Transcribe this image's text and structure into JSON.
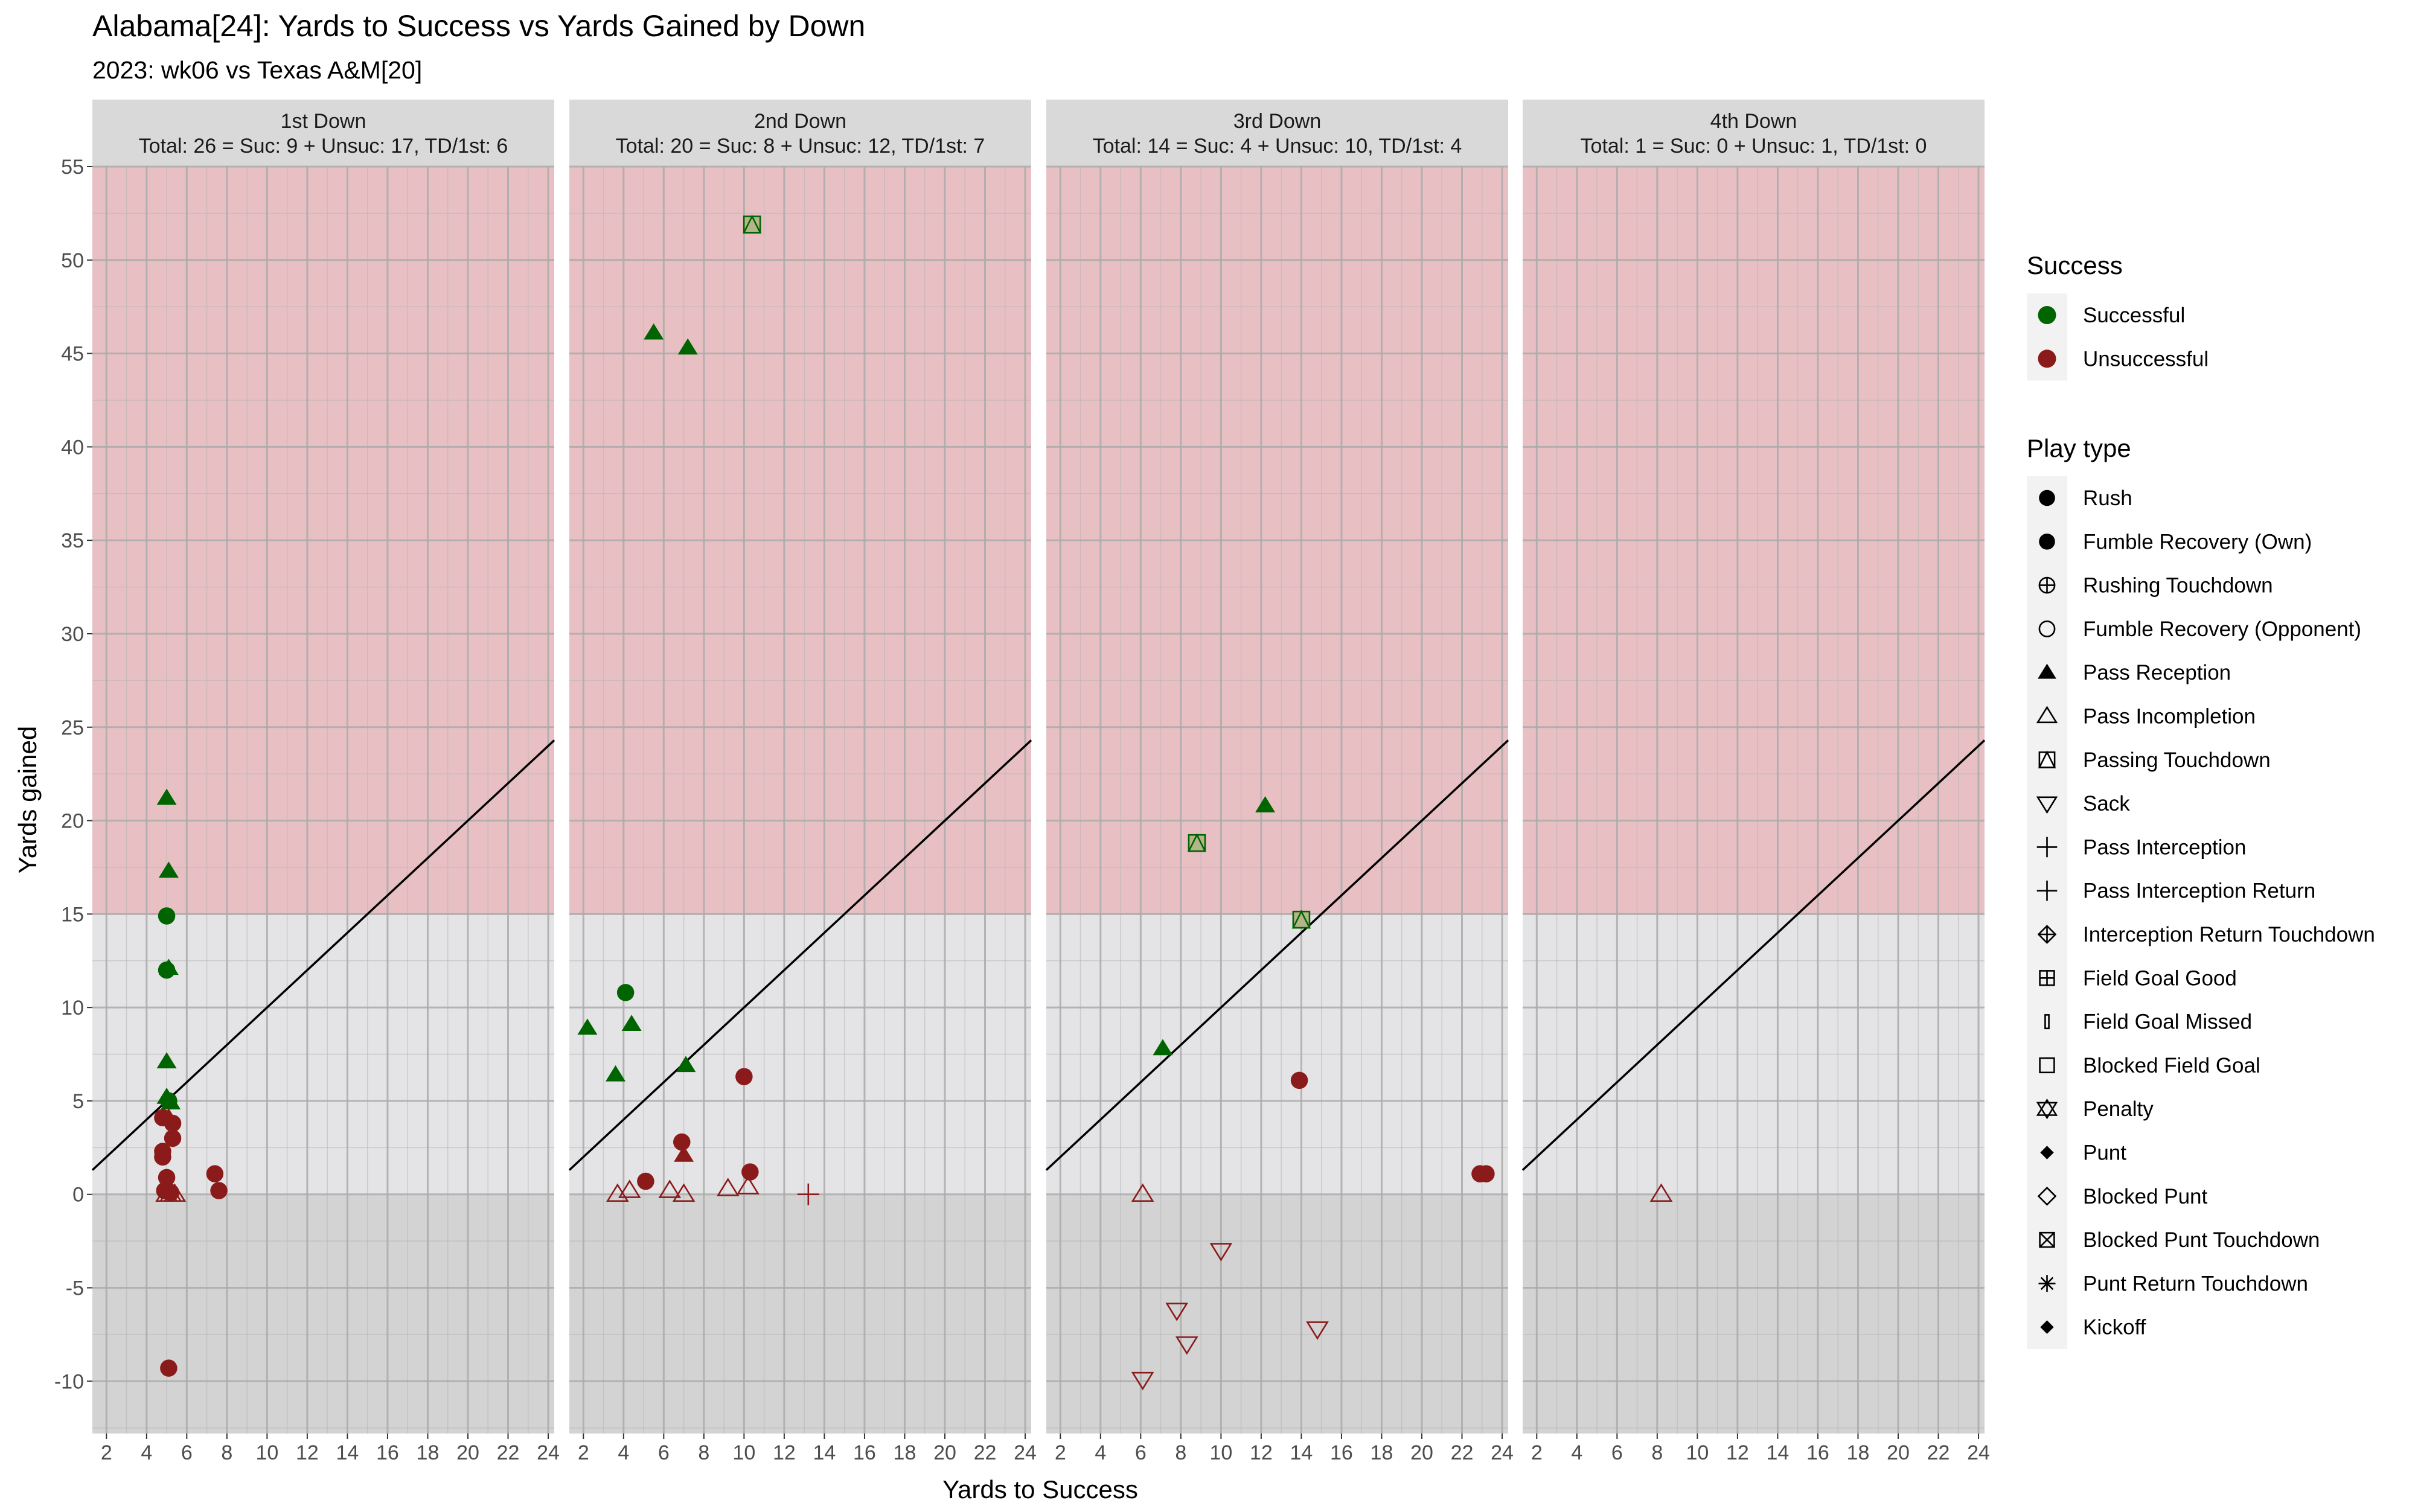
{
  "chart_data": {
    "type": "scatter",
    "title": "Alabama[24]: Yards to Success vs Yards Gained by Down",
    "subtitle": "2023: wk06 vs Texas A&M[20]",
    "xlabel": "Yards to Success",
    "ylabel": "Yards gained",
    "xlim": [
      1.3,
      24.3
    ],
    "ylim": [
      -12.8,
      55
    ],
    "x_ticks": [
      2,
      4,
      6,
      8,
      10,
      12,
      14,
      16,
      18,
      20,
      22,
      24
    ],
    "y_ticks": [
      -10,
      -5,
      0,
      5,
      10,
      15,
      20,
      25,
      30,
      35,
      40,
      45,
      50,
      55
    ],
    "grid": true,
    "bands": [
      {
        "from": -12.8,
        "to": 0,
        "color": "#d3d3d3"
      },
      {
        "from": 0,
        "to": 15,
        "color": "#e4e4e6"
      },
      {
        "from": 15,
        "to": 55,
        "color": "#e8c0c4"
      }
    ],
    "reference_line": {
      "slope": 1,
      "intercept": 0
    },
    "colors": {
      "Successful": "#006400",
      "Unsuccessful": "#8b1a1a",
      "passing_td_fill": "#b5b58a"
    },
    "legend_position": "right",
    "legend": {
      "success_title": "Success",
      "success_items": [
        {
          "label": "Successful",
          "color": "#006400"
        },
        {
          "label": "Unsuccessful",
          "color": "#8b1a1a"
        }
      ],
      "playtype_title": "Play type",
      "playtype_items": [
        {
          "label": "Rush",
          "shape": "circle-filled"
        },
        {
          "label": "Fumble Recovery (Own)",
          "shape": "circle-filled"
        },
        {
          "label": "Rushing Touchdown",
          "shape": "circle-plus"
        },
        {
          "label": "Fumble Recovery (Opponent)",
          "shape": "circle-open"
        },
        {
          "label": "Pass Reception",
          "shape": "triangle-filled"
        },
        {
          "label": "Pass Incompletion",
          "shape": "triangle-open"
        },
        {
          "label": "Passing Touchdown",
          "shape": "square-triangle"
        },
        {
          "label": "Sack",
          "shape": "triangle-down-open"
        },
        {
          "label": "Pass Interception",
          "shape": "plus"
        },
        {
          "label": "Pass Interception Return",
          "shape": "plus"
        },
        {
          "label": "Interception Return Touchdown",
          "shape": "diamond-plus"
        },
        {
          "label": "Field Goal Good",
          "shape": "square-plus"
        },
        {
          "label": "Field Goal Missed",
          "shape": "thin-rect"
        },
        {
          "label": "Blocked Field Goal",
          "shape": "square-open"
        },
        {
          "label": "Penalty",
          "shape": "star-of-david"
        },
        {
          "label": "Punt",
          "shape": "diamond-filled"
        },
        {
          "label": "Blocked Punt",
          "shape": "diamond-open"
        },
        {
          "label": "Blocked Punt Touchdown",
          "shape": "square-x"
        },
        {
          "label": "Punt Return Touchdown",
          "shape": "asterisk"
        },
        {
          "label": "Kickoff",
          "shape": "diamond-filled"
        }
      ]
    },
    "panels": [
      {
        "strip_line1": "1st Down",
        "strip_line2": "Total: 26 = Suc: 9 + Unsuc: 17, TD/1st: 6",
        "points": [
          {
            "x": 5.0,
            "y": 21.2,
            "type": "Pass Reception",
            "success": "Successful"
          },
          {
            "x": 5.1,
            "y": 17.3,
            "type": "Pass Reception",
            "success": "Successful"
          },
          {
            "x": 5.0,
            "y": 14.9,
            "type": "Rush",
            "success": "Successful"
          },
          {
            "x": 5.1,
            "y": 12.1,
            "type": "Pass Reception",
            "success": "Successful"
          },
          {
            "x": 5.0,
            "y": 12.0,
            "type": "Rush",
            "success": "Successful"
          },
          {
            "x": 5.0,
            "y": 7.1,
            "type": "Pass Reception",
            "success": "Successful"
          },
          {
            "x": 5.0,
            "y": 5.2,
            "type": "Pass Reception",
            "success": "Successful"
          },
          {
            "x": 5.1,
            "y": 5.0,
            "type": "Rush",
            "success": "Successful"
          },
          {
            "x": 5.2,
            "y": 4.9,
            "type": "Pass Reception",
            "success": "Successful"
          },
          {
            "x": 4.8,
            "y": 4.1,
            "type": "Rush",
            "success": "Unsuccessful"
          },
          {
            "x": 5.1,
            "y": 4.1,
            "type": "Pass Reception",
            "success": "Unsuccessful"
          },
          {
            "x": 5.3,
            "y": 3.8,
            "type": "Rush",
            "success": "Unsuccessful"
          },
          {
            "x": 5.3,
            "y": 3.0,
            "type": "Rush",
            "success": "Unsuccessful"
          },
          {
            "x": 4.8,
            "y": 2.3,
            "type": "Rush",
            "success": "Unsuccessful"
          },
          {
            "x": 4.8,
            "y": 2.0,
            "type": "Rush",
            "success": "Unsuccessful"
          },
          {
            "x": 5.0,
            "y": 0.9,
            "type": "Rush",
            "success": "Unsuccessful"
          },
          {
            "x": 4.9,
            "y": 0.2,
            "type": "Rush",
            "success": "Unsuccessful"
          },
          {
            "x": 5.2,
            "y": 0.1,
            "type": "Rush",
            "success": "Unsuccessful"
          },
          {
            "x": 5.0,
            "y": 0.0,
            "type": "Pass Incompletion",
            "success": "Unsuccessful"
          },
          {
            "x": 5.2,
            "y": 0.0,
            "type": "Pass Incompletion",
            "success": "Unsuccessful"
          },
          {
            "x": 5.4,
            "y": 0.0,
            "type": "Pass Incompletion",
            "success": "Unsuccessful"
          },
          {
            "x": 7.4,
            "y": 1.1,
            "type": "Rush",
            "success": "Unsuccessful"
          },
          {
            "x": 7.6,
            "y": 0.2,
            "type": "Rush",
            "success": "Unsuccessful"
          },
          {
            "x": 5.1,
            "y": -9.3,
            "type": "Rush",
            "success": "Unsuccessful"
          }
        ]
      },
      {
        "strip_line1": "2nd Down",
        "strip_line2": "Total: 20 = Suc: 8 + Unsuc: 12, TD/1st: 7",
        "points": [
          {
            "x": 10.4,
            "y": 51.9,
            "type": "Passing Touchdown",
            "success": "Successful"
          },
          {
            "x": 5.5,
            "y": 46.1,
            "type": "Pass Reception",
            "success": "Successful"
          },
          {
            "x": 7.2,
            "y": 45.3,
            "type": "Pass Reception",
            "success": "Successful"
          },
          {
            "x": 4.1,
            "y": 10.8,
            "type": "Rush",
            "success": "Successful"
          },
          {
            "x": 2.2,
            "y": 8.9,
            "type": "Pass Reception",
            "success": "Successful"
          },
          {
            "x": 4.4,
            "y": 9.1,
            "type": "Pass Reception",
            "success": "Successful"
          },
          {
            "x": 3.6,
            "y": 6.4,
            "type": "Pass Reception",
            "success": "Successful"
          },
          {
            "x": 7.1,
            "y": 6.9,
            "type": "Pass Reception",
            "success": "Successful"
          },
          {
            "x": 10.0,
            "y": 6.3,
            "type": "Rush",
            "success": "Unsuccessful"
          },
          {
            "x": 6.9,
            "y": 2.8,
            "type": "Rush",
            "success": "Unsuccessful"
          },
          {
            "x": 7.0,
            "y": 2.1,
            "type": "Pass Reception",
            "success": "Unsuccessful"
          },
          {
            "x": 10.3,
            "y": 1.2,
            "type": "Rush",
            "success": "Unsuccessful"
          },
          {
            "x": 5.1,
            "y": 0.7,
            "type": "Rush",
            "success": "Unsuccessful"
          },
          {
            "x": 3.7,
            "y": 0.0,
            "type": "Pass Incompletion",
            "success": "Unsuccessful"
          },
          {
            "x": 4.3,
            "y": 0.2,
            "type": "Pass Incompletion",
            "success": "Unsuccessful"
          },
          {
            "x": 6.3,
            "y": 0.2,
            "type": "Pass Incompletion",
            "success": "Unsuccessful"
          },
          {
            "x": 7.0,
            "y": 0.0,
            "type": "Pass Incompletion",
            "success": "Unsuccessful"
          },
          {
            "x": 9.2,
            "y": 0.3,
            "type": "Pass Incompletion",
            "success": "Unsuccessful"
          },
          {
            "x": 10.2,
            "y": 0.4,
            "type": "Pass Incompletion",
            "success": "Unsuccessful"
          },
          {
            "x": 13.2,
            "y": 0.0,
            "type": "Pass Interception",
            "success": "Unsuccessful"
          }
        ]
      },
      {
        "strip_line1": "3rd Down",
        "strip_line2": "Total: 14 = Suc: 4 + Unsuc: 10, TD/1st: 4",
        "points": [
          {
            "x": 12.2,
            "y": 20.8,
            "type": "Pass Reception",
            "success": "Successful"
          },
          {
            "x": 8.8,
            "y": 18.8,
            "type": "Passing Touchdown",
            "success": "Successful"
          },
          {
            "x": 14.0,
            "y": 14.7,
            "type": "Passing Touchdown",
            "success": "Successful"
          },
          {
            "x": 7.1,
            "y": 7.8,
            "type": "Pass Reception",
            "success": "Successful"
          },
          {
            "x": 13.9,
            "y": 6.1,
            "type": "Rush",
            "success": "Unsuccessful"
          },
          {
            "x": 22.9,
            "y": 1.1,
            "type": "Rush",
            "success": "Unsuccessful"
          },
          {
            "x": 23.2,
            "y": 1.1,
            "type": "Rush",
            "success": "Unsuccessful"
          },
          {
            "x": 6.1,
            "y": 0.0,
            "type": "Pass Incompletion",
            "success": "Unsuccessful"
          },
          {
            "x": 10.0,
            "y": -3.0,
            "type": "Sack",
            "success": "Unsuccessful"
          },
          {
            "x": 7.8,
            "y": -6.2,
            "type": "Sack",
            "success": "Unsuccessful"
          },
          {
            "x": 14.8,
            "y": -7.2,
            "type": "Sack",
            "success": "Unsuccessful"
          },
          {
            "x": 8.3,
            "y": -8.0,
            "type": "Sack",
            "success": "Unsuccessful"
          },
          {
            "x": 6.1,
            "y": -9.9,
            "type": "Sack",
            "success": "Unsuccessful"
          }
        ]
      },
      {
        "strip_line1": "4th Down",
        "strip_line2": "Total: 1 = Suc: 0 + Unsuc: 1, TD/1st: 0",
        "points": [
          {
            "x": 8.2,
            "y": 0.0,
            "type": "Pass Incompletion",
            "success": "Unsuccessful"
          }
        ]
      }
    ]
  }
}
